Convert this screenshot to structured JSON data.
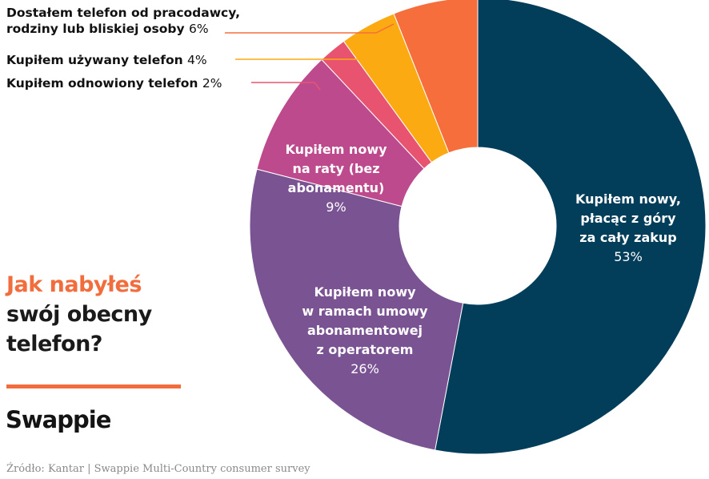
{
  "chart_data": {
    "type": "pie",
    "title_line1": "Jak nabyłeś",
    "title_line2": "swój obecny",
    "title_line3": "telefon?",
    "slices": [
      {
        "name_lines": [
          "Kupiłem nowy,",
          "płacąc z góry",
          "za cały zakup"
        ],
        "pct_label": "53%",
        "value": 53,
        "color": "#023d5a"
      },
      {
        "name_lines": [
          "Kupiłem nowy",
          "w ramach umowy",
          "abonamentowej",
          "z operatorem"
        ],
        "pct_label": "26%",
        "value": 26,
        "color": "#7a5393"
      },
      {
        "name_lines": [
          "Kupiłem nowy",
          "na raty (bez",
          "abonamentu)"
        ],
        "pct_label": "9%",
        "value": 9,
        "color": "#bd4a8c"
      },
      {
        "name_lines": [
          "Kupiłem odnowiony telefon"
        ],
        "pct_label": "2%",
        "value": 2,
        "color": "#e8546f"
      },
      {
        "name_lines": [
          "Kupiłem używany telefon"
        ],
        "pct_label": "4%",
        "value": 4,
        "color": "#fbaa12"
      },
      {
        "name_lines": [
          "Dostałem telefon od pracodawcy,",
          "rodziny lub bliskiej osoby"
        ],
        "pct_label": "6%",
        "value": 6,
        "color": "#f56e3c"
      }
    ]
  },
  "brand": "Swappie",
  "source": "Źródło: Kantar | Swappie Multi-Country consumer survey",
  "colors": {
    "accent": "#f26d3d",
    "text": "#1a1a1a"
  }
}
